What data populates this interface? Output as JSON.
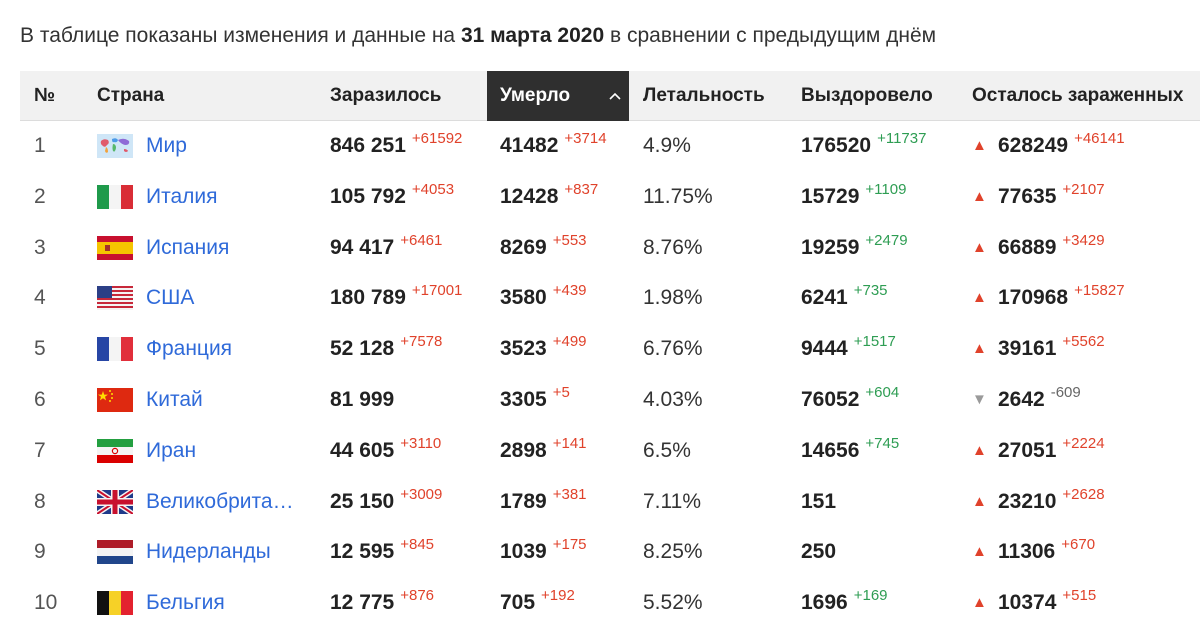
{
  "caption": {
    "prefix": "В таблице показаны изменения и данные на ",
    "date": "31 марта 2020",
    "suffix": " в сравнении с предыдущим днём"
  },
  "headers": {
    "no": "№",
    "country": "Страна",
    "infected": "Заразилось",
    "died": "Умерло",
    "lethality": "Летальность",
    "recovered": "Выздоровело",
    "active": "Осталось зараженных"
  },
  "sort_icon": "chevron-up-icon",
  "colors": {
    "accent_link": "#2f6ad9",
    "increase": "#e0422b",
    "decrease_green": "#2e9d53",
    "header_active": "#2f2f2f"
  },
  "rows": [
    {
      "no": "1",
      "country": "Мир",
      "flag": "world",
      "infected": "846 251",
      "infected_delta": "+61592",
      "died": "41482",
      "died_delta": "+3714",
      "lethality": "4.9%",
      "recovered": "176520",
      "recovered_delta": "+11737",
      "trend": "up",
      "active": "628249",
      "active_delta": "+46141"
    },
    {
      "no": "2",
      "country": "Италия",
      "flag": "italy",
      "infected": "105 792",
      "infected_delta": "+4053",
      "died": "12428",
      "died_delta": "+837",
      "lethality": "11.75%",
      "recovered": "15729",
      "recovered_delta": "+1109",
      "trend": "up",
      "active": "77635",
      "active_delta": "+2107"
    },
    {
      "no": "3",
      "country": "Испания",
      "flag": "spain",
      "infected": "94 417",
      "infected_delta": "+6461",
      "died": "8269",
      "died_delta": "+553",
      "lethality": "8.76%",
      "recovered": "19259",
      "recovered_delta": "+2479",
      "trend": "up",
      "active": "66889",
      "active_delta": "+3429"
    },
    {
      "no": "4",
      "country": "США",
      "flag": "usa",
      "infected": "180 789",
      "infected_delta": "+17001",
      "died": "3580",
      "died_delta": "+439",
      "lethality": "1.98%",
      "recovered": "6241",
      "recovered_delta": "+735",
      "trend": "up",
      "active": "170968",
      "active_delta": "+15827"
    },
    {
      "no": "5",
      "country": "Франция",
      "flag": "france",
      "infected": "52 128",
      "infected_delta": "+7578",
      "died": "3523",
      "died_delta": "+499",
      "lethality": "6.76%",
      "recovered": "9444",
      "recovered_delta": "+1517",
      "trend": "up",
      "active": "39161",
      "active_delta": "+5562"
    },
    {
      "no": "6",
      "country": "Китай",
      "flag": "china",
      "infected": "81 999",
      "infected_delta": "",
      "died": "3305",
      "died_delta": "+5",
      "lethality": "4.03%",
      "recovered": "76052",
      "recovered_delta": "+604",
      "trend": "down",
      "active": "2642",
      "active_delta": "-609"
    },
    {
      "no": "7",
      "country": "Иран",
      "flag": "iran",
      "infected": "44 605",
      "infected_delta": "+3110",
      "died": "2898",
      "died_delta": "+141",
      "lethality": "6.5%",
      "recovered": "14656",
      "recovered_delta": "+745",
      "trend": "up",
      "active": "27051",
      "active_delta": "+2224"
    },
    {
      "no": "8",
      "country": "Великобрита…",
      "flag": "uk",
      "infected": "25 150",
      "infected_delta": "+3009",
      "died": "1789",
      "died_delta": "+381",
      "lethality": "7.11%",
      "recovered": "151",
      "recovered_delta": "",
      "trend": "up",
      "active": "23210",
      "active_delta": "+2628"
    },
    {
      "no": "9",
      "country": "Нидерланды",
      "flag": "netherlands",
      "infected": "12 595",
      "infected_delta": "+845",
      "died": "1039",
      "died_delta": "+175",
      "lethality": "8.25%",
      "recovered": "250",
      "recovered_delta": "",
      "trend": "up",
      "active": "11306",
      "active_delta": "+670"
    },
    {
      "no": "10",
      "country": "Бельгия",
      "flag": "belgium",
      "infected": "12 775",
      "infected_delta": "+876",
      "died": "705",
      "died_delta": "+192",
      "lethality": "5.52%",
      "recovered": "1696",
      "recovered_delta": "+169",
      "trend": "up",
      "active": "10374",
      "active_delta": "+515"
    }
  ]
}
